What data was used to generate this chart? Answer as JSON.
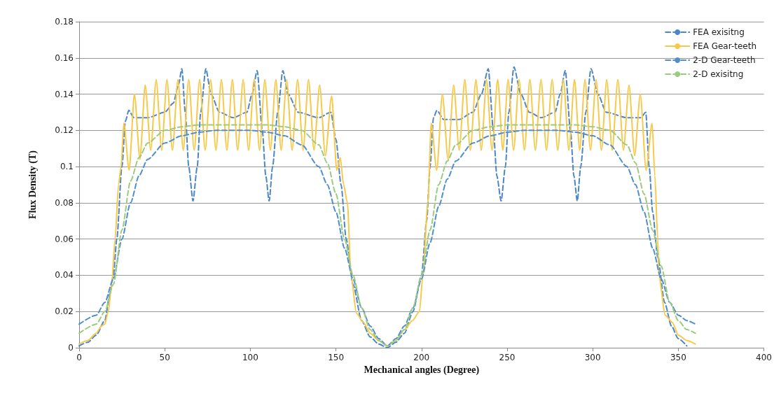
{
  "chart_data": {
    "type": "line",
    "xlabel": "Mechanical angles (Degree)",
    "ylabel": "Flux Density (T)",
    "xlim": [
      0,
      400
    ],
    "xticks": [
      0,
      50,
      100,
      150,
      200,
      250,
      300,
      350,
      400
    ],
    "ylim": [
      0,
      0.18
    ],
    "yticks": [
      0,
      0.02,
      0.04,
      0.06,
      0.08,
      0.1,
      0.12,
      0.14,
      0.16,
      0.18
    ],
    "grid": "y",
    "legend": "top right",
    "marker": "none",
    "series": [
      {
        "name": "FEA exisitng",
        "color": "#4a86c8",
        "line_style": "dashed",
        "x": [
          0,
          5,
          10,
          15,
          18,
          20,
          22,
          25,
          27,
          29,
          32,
          40,
          50,
          55,
          58,
          60,
          62,
          64,
          66.5,
          69,
          71,
          74,
          77,
          82,
          90,
          98,
          101,
          104,
          107,
          109,
          111,
          113,
          116,
          119,
          122,
          128,
          140,
          147,
          150,
          153,
          156,
          160,
          165,
          170,
          175,
          180,
          185,
          190,
          195,
          200,
          203,
          205,
          207,
          209,
          213,
          222,
          230,
          235,
          239,
          242,
          244,
          246.5,
          249,
          251,
          254,
          258,
          263,
          270,
          278,
          281,
          284,
          287,
          289,
          291,
          293,
          296,
          299,
          303,
          308,
          320,
          328,
          331,
          333,
          335,
          338,
          342,
          346,
          350,
          355
        ],
        "values": [
          0.001,
          0.003,
          0.007,
          0.015,
          0.03,
          0.04,
          0.06,
          0.1,
          0.125,
          0.131,
          0.127,
          0.127,
          0.13,
          0.135,
          0.145,
          0.154,
          0.13,
          0.1,
          0.081,
          0.1,
          0.13,
          0.154,
          0.14,
          0.13,
          0.127,
          0.13,
          0.14,
          0.153,
          0.12,
          0.095,
          0.081,
          0.1,
          0.13,
          0.153,
          0.14,
          0.13,
          0.127,
          0.13,
          0.115,
          0.09,
          0.06,
          0.035,
          0.015,
          0.006,
          0.002,
          0.0,
          0.003,
          0.008,
          0.02,
          0.04,
          0.07,
          0.1,
          0.127,
          0.131,
          0.126,
          0.126,
          0.13,
          0.14,
          0.154,
          0.12,
          0.095,
          0.081,
          0.1,
          0.13,
          0.155,
          0.14,
          0.13,
          0.127,
          0.13,
          0.14,
          0.153,
          0.12,
          0.095,
          0.081,
          0.1,
          0.13,
          0.154,
          0.14,
          0.13,
          0.127,
          0.127,
          0.13,
          0.1,
          0.075,
          0.05,
          0.025,
          0.012,
          0.005,
          0.001
        ]
      },
      {
        "name": "FEA Gear-teeth",
        "color": "#f7c94a",
        "line_style": "solid",
        "x": [
          0,
          5,
          10,
          13,
          15,
          17,
          19,
          21,
          23,
          24.5,
          26.1,
          29.2,
          32.3,
          35.5,
          38.6,
          41.8,
          45,
          48.2,
          51.3,
          54.5,
          57.7,
          60.8,
          64,
          67.2,
          70.4,
          73.6,
          76.8,
          79.9,
          83.1,
          86.3,
          89.5,
          92.6,
          95.8,
          99,
          102.2,
          105.4,
          108.5,
          111.7,
          114.9,
          118,
          121.2,
          124.4,
          127.6,
          130.8,
          134,
          137.2,
          140.5,
          143.8,
          147.5,
          150.5,
          152.5,
          154.5,
          156.7,
          158.8,
          162,
          166,
          170,
          175,
          180,
          185,
          190,
          194.7,
          198.8,
          200.8,
          203.7,
          205.7,
          208.9,
          212.2,
          215.5,
          218.8,
          222,
          225.3,
          228.5,
          231.8,
          234.9,
          238,
          241.2,
          244.5,
          247.5,
          250.6,
          253.8,
          257,
          260.1,
          263.3,
          266.5,
          269.8,
          273,
          276.3,
          279.6,
          282.9,
          286.1,
          289.4,
          292.4,
          295.5,
          298.7,
          302,
          305.1,
          308.2,
          311.4,
          314.7,
          318,
          321.2,
          324.5,
          327.8,
          331.2,
          334.7,
          336.3,
          338,
          338.6,
          342.4,
          346.5,
          350,
          355,
          360
        ],
        "values": [
          0.002,
          0.004,
          0.008,
          0.012,
          0.013,
          0.02,
          0.035,
          0.06,
          0.09,
          0.1,
          0.124,
          0.098,
          0.14,
          0.104,
          0.145,
          0.109,
          0.148,
          0.109,
          0.148,
          0.109,
          0.148,
          0.109,
          0.148,
          0.109,
          0.148,
          0.109,
          0.148,
          0.109,
          0.148,
          0.109,
          0.148,
          0.109,
          0.148,
          0.109,
          0.148,
          0.109,
          0.148,
          0.109,
          0.148,
          0.109,
          0.148,
          0.109,
          0.148,
          0.109,
          0.148,
          0.109,
          0.145,
          0.106,
          0.139,
          0.098,
          0.105,
          0.09,
          0.08,
          0.04,
          0.019,
          0.014,
          0.008,
          0.004,
          0.001,
          0.004,
          0.01,
          0.015,
          0.02,
          0.04,
          0.08,
          0.124,
          0.098,
          0.14,
          0.104,
          0.145,
          0.109,
          0.148,
          0.109,
          0.148,
          0.109,
          0.148,
          0.109,
          0.148,
          0.109,
          0.148,
          0.109,
          0.148,
          0.109,
          0.148,
          0.109,
          0.148,
          0.109,
          0.148,
          0.109,
          0.148,
          0.109,
          0.148,
          0.109,
          0.148,
          0.109,
          0.148,
          0.109,
          0.148,
          0.109,
          0.148,
          0.109,
          0.145,
          0.106,
          0.14,
          0.098,
          0.124,
          0.095,
          0.06,
          0.04,
          0.018,
          0.014,
          0.007,
          0.004,
          0.002
        ]
      },
      {
        "name": "2-D Gear-teeth",
        "color": "#4f8fd0",
        "line_style": "dashed",
        "x": [
          0,
          10,
          15,
          20,
          25,
          30,
          35,
          40,
          50,
          60,
          70,
          80,
          100,
          110,
          120,
          130,
          140,
          145,
          150,
          155,
          160,
          165,
          170,
          175,
          180,
          185,
          190,
          195,
          200,
          205,
          210,
          215,
          220,
          230,
          240,
          250,
          260,
          280,
          290,
          300,
          310,
          320,
          325,
          330,
          335,
          340,
          345,
          350,
          355,
          360
        ],
        "values": [
          0.013,
          0.018,
          0.025,
          0.038,
          0.06,
          0.08,
          0.095,
          0.104,
          0.113,
          0.117,
          0.119,
          0.12,
          0.12,
          0.119,
          0.117,
          0.112,
          0.1,
          0.09,
          0.075,
          0.055,
          0.038,
          0.022,
          0.012,
          0.005,
          0.001,
          0.005,
          0.012,
          0.022,
          0.038,
          0.058,
          0.078,
          0.093,
          0.103,
          0.113,
          0.117,
          0.119,
          0.12,
          0.12,
          0.119,
          0.117,
          0.112,
          0.1,
          0.09,
          0.075,
          0.055,
          0.038,
          0.025,
          0.018,
          0.015,
          0.013
        ]
      },
      {
        "name": "2-D exisitng",
        "color": "#9ccb7e",
        "line_style": "dashed",
        "x": [
          0,
          10,
          15,
          20,
          25,
          30,
          35,
          40,
          50,
          60,
          70,
          110,
          120,
          130,
          140,
          145,
          150,
          155,
          160,
          165,
          170,
          175,
          180,
          185,
          190,
          195,
          200,
          205,
          210,
          215,
          220,
          230,
          240,
          250,
          290,
          300,
          310,
          320,
          325,
          330,
          335,
          340,
          345,
          350,
          355,
          360
        ],
        "values": [
          0.008,
          0.013,
          0.02,
          0.035,
          0.065,
          0.092,
          0.105,
          0.113,
          0.12,
          0.122,
          0.123,
          0.123,
          0.122,
          0.12,
          0.112,
          0.102,
          0.085,
          0.06,
          0.04,
          0.022,
          0.01,
          0.004,
          0.001,
          0.004,
          0.01,
          0.022,
          0.04,
          0.065,
          0.09,
          0.103,
          0.112,
          0.12,
          0.122,
          0.123,
          0.123,
          0.122,
          0.12,
          0.112,
          0.102,
          0.085,
          0.065,
          0.045,
          0.025,
          0.015,
          0.01,
          0.008
        ]
      }
    ]
  }
}
